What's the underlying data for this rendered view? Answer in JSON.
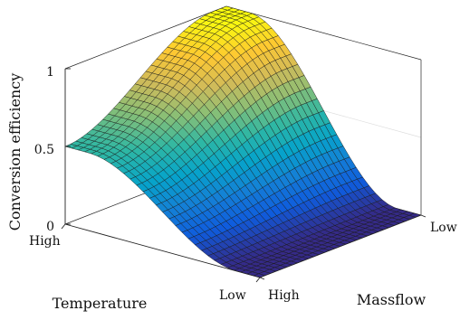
{
  "chart_data": {
    "type": "surface",
    "title": "",
    "zlabel": "Conversion efficiency",
    "xlabel": "Temperature",
    "ylabel": "Massflow",
    "zlim": [
      0,
      1
    ],
    "z_ticks": [
      "0",
      "0.5",
      "1"
    ],
    "x_ticks": [
      "High",
      "Low"
    ],
    "y_ticks": [
      "High",
      "Low"
    ],
    "grid": true,
    "colormap": "parula",
    "colormap_stops": [
      "#352a87",
      "#0f5cdd",
      "#1481d6",
      "#06a4ca",
      "#2eb7a4",
      "#87bf77",
      "#d1bb59",
      "#fec832",
      "#f9fb0e"
    ],
    "mesh_size": [
      31,
      31
    ],
    "series": [
      {
        "description_values": {
          "high_temperature_high_massflow": 0.5,
          "high_temperature_low_massflow": 1.0,
          "low_temperature_high_massflow": 0.0,
          "low_temperature_low_massflow": 0.0
        }
      }
    ]
  }
}
